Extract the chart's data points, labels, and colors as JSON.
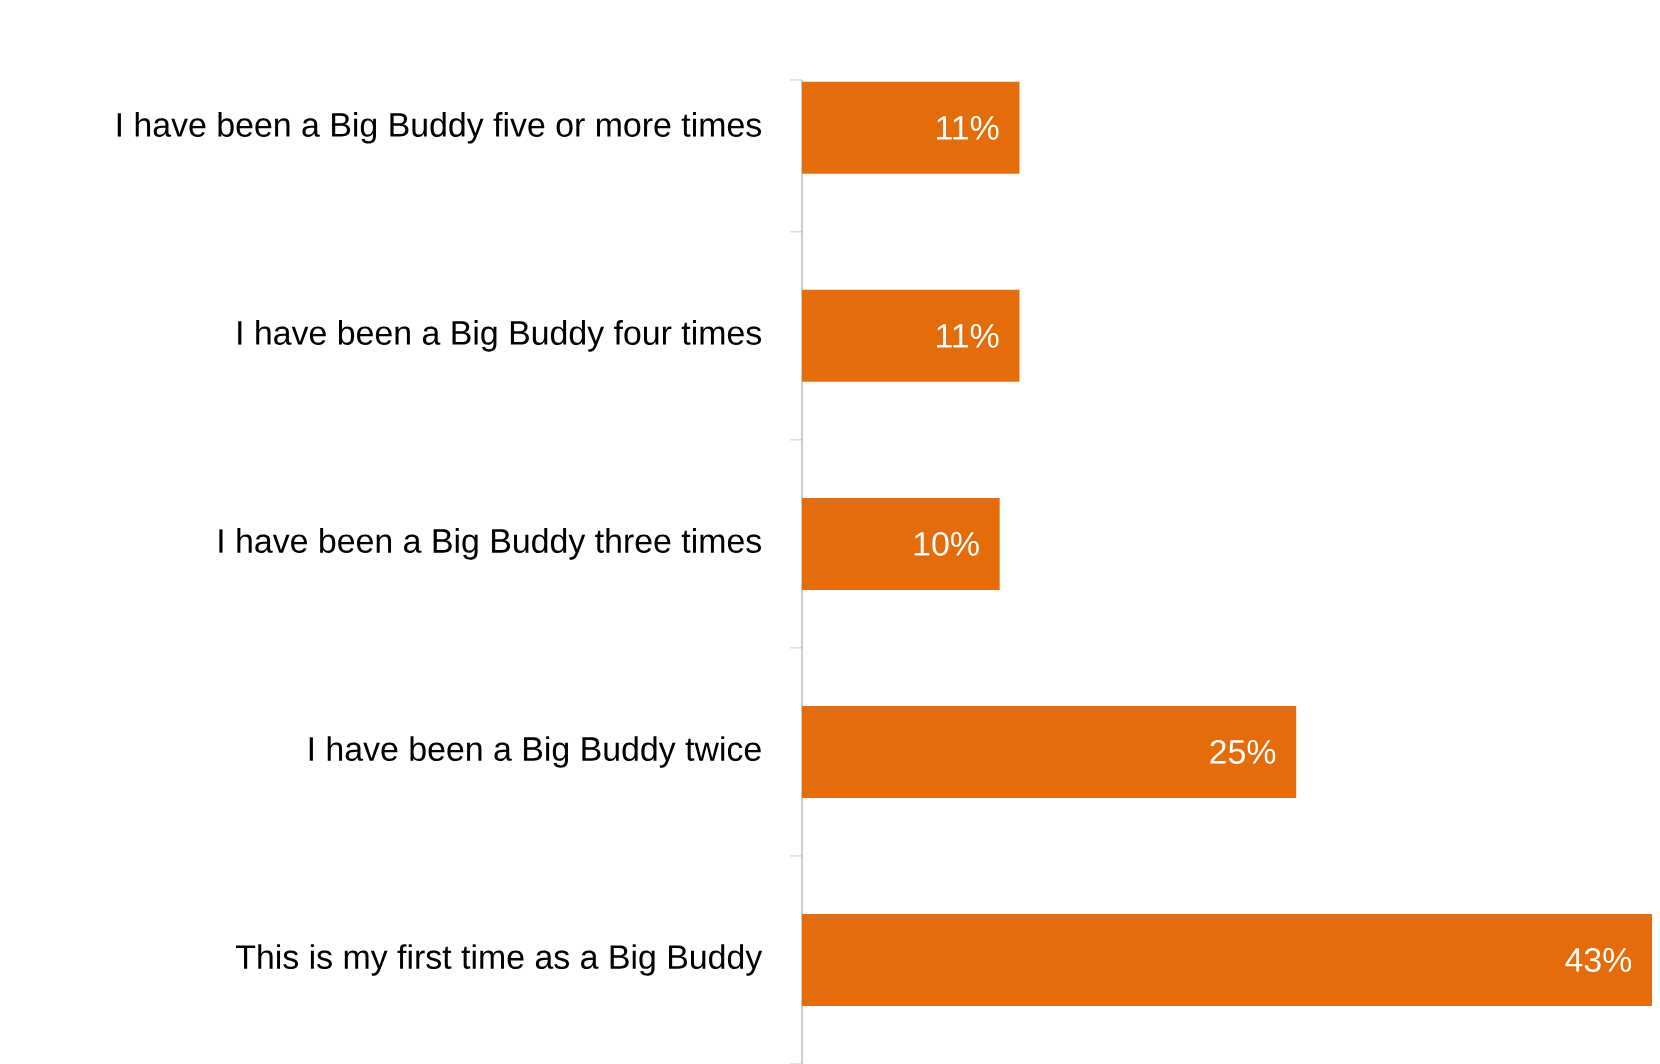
{
  "chart_data": {
    "type": "bar",
    "orientation": "horizontal",
    "categories": [
      "I have been a Big Buddy five or more times",
      "I have been a Big Buddy four times",
      "I have been a Big Buddy three times",
      "I have been a Big Buddy twice",
      "This is my first time as a Big Buddy"
    ],
    "values": [
      11,
      11,
      10,
      25,
      43
    ],
    "value_labels": [
      "11%",
      "11%",
      "10%",
      "25%",
      "43%"
    ],
    "color": "#e46c0a"
  }
}
